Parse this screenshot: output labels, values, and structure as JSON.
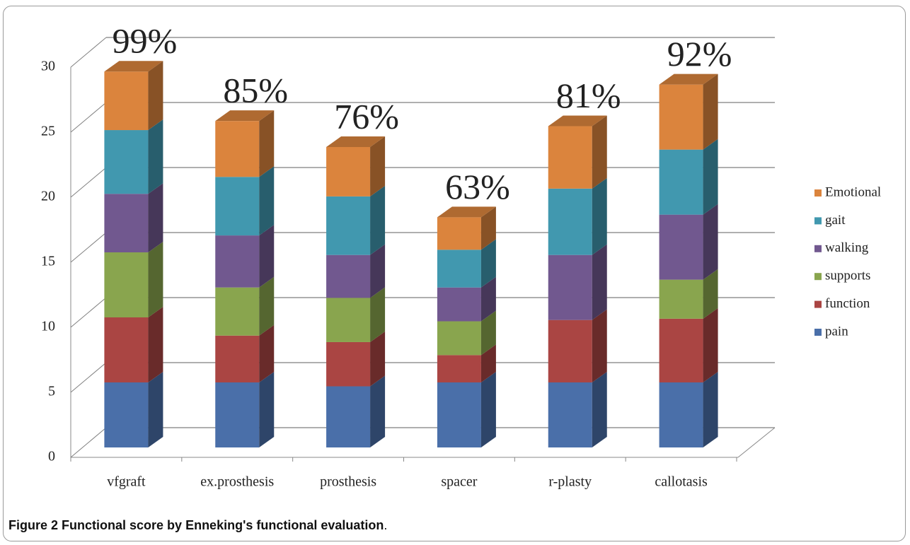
{
  "chart_data": {
    "type": "bar3d_stacked",
    "categories": [
      "vfgraft",
      "ex.prosthesis",
      "prosthesis",
      "spacer",
      "r-plasty",
      "callotasis"
    ],
    "series": [
      {
        "name": "pain",
        "color": "#4a6fa9",
        "values": [
          5,
          5,
          4.7,
          5,
          5,
          5
        ]
      },
      {
        "name": "function",
        "color": "#aa4543",
        "values": [
          5,
          3.6,
          3.4,
          2.1,
          4.8,
          4.9
        ]
      },
      {
        "name": "supports",
        "color": "#89a54e",
        "values": [
          5,
          3.7,
          3.4,
          2.6,
          0,
          3
        ]
      },
      {
        "name": "walking",
        "color": "#71588f",
        "values": [
          4.5,
          4,
          3.3,
          2.6,
          5,
          5
        ]
      },
      {
        "name": "gait",
        "color": "#4198af",
        "values": [
          4.9,
          4.5,
          4.5,
          2.9,
          5.1,
          5
        ]
      },
      {
        "name": "Emotional",
        "color": "#db843d",
        "values": [
          4.5,
          4.3,
          3.8,
          2.5,
          4.8,
          5
        ]
      }
    ],
    "annotations": [
      "99%",
      "85%",
      "76%",
      "63%",
      "81%",
      "92%"
    ],
    "ylim": [
      0,
      30
    ],
    "yticks": [
      0,
      5,
      10,
      15,
      20,
      25,
      30
    ],
    "grid": true,
    "legend": "right"
  },
  "caption": {
    "label": "Figure 2",
    "text": "Functional score by Enneking's functional evaluation",
    "end": "."
  }
}
